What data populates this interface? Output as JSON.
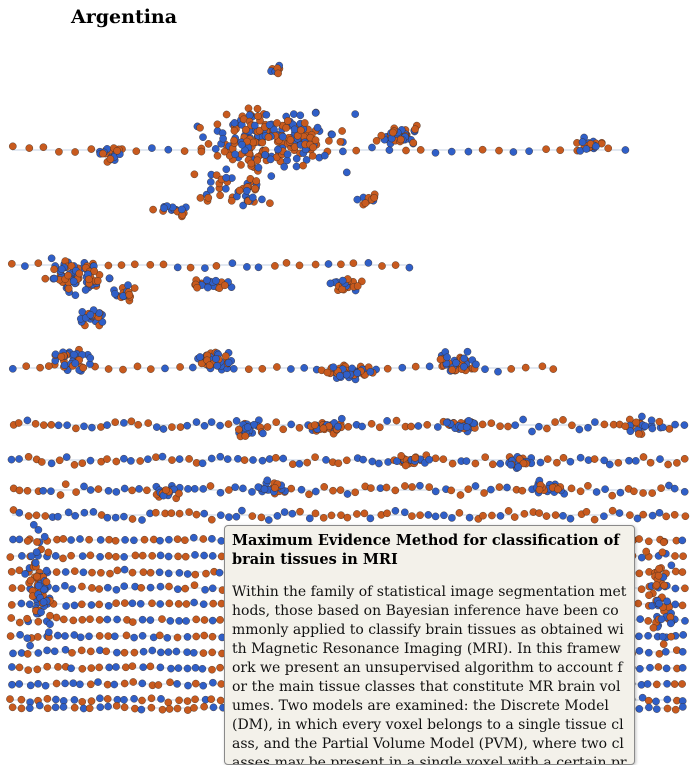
{
  "page": {
    "title": "Argentina"
  },
  "colors": {
    "node_blue": "#2f5fc8",
    "node_orange": "#c85a1e",
    "edge": "#8aa6c8",
    "tooltip_bg": "#f3f1ea"
  },
  "tooltip": {
    "title": "Maximum Evidence Method for classification of brain tissues in MRI",
    "body": "Within the family of statistical image segmentation methods, those based on Bayesian inference have been commonly applied to classify brain tissues as obtained with Magnetic Resonance Imaging (MRI). In this framework we present an unsupervised algorithm to account for the main tissue classes that constitute MR brain volumes. Two models are examined: the Discrete Model (DM), in which every voxel belongs to a single tissue class, and the Partial Volume Model (PVM), where two classes may be present in a single voxel with a certain probability"
  }
}
